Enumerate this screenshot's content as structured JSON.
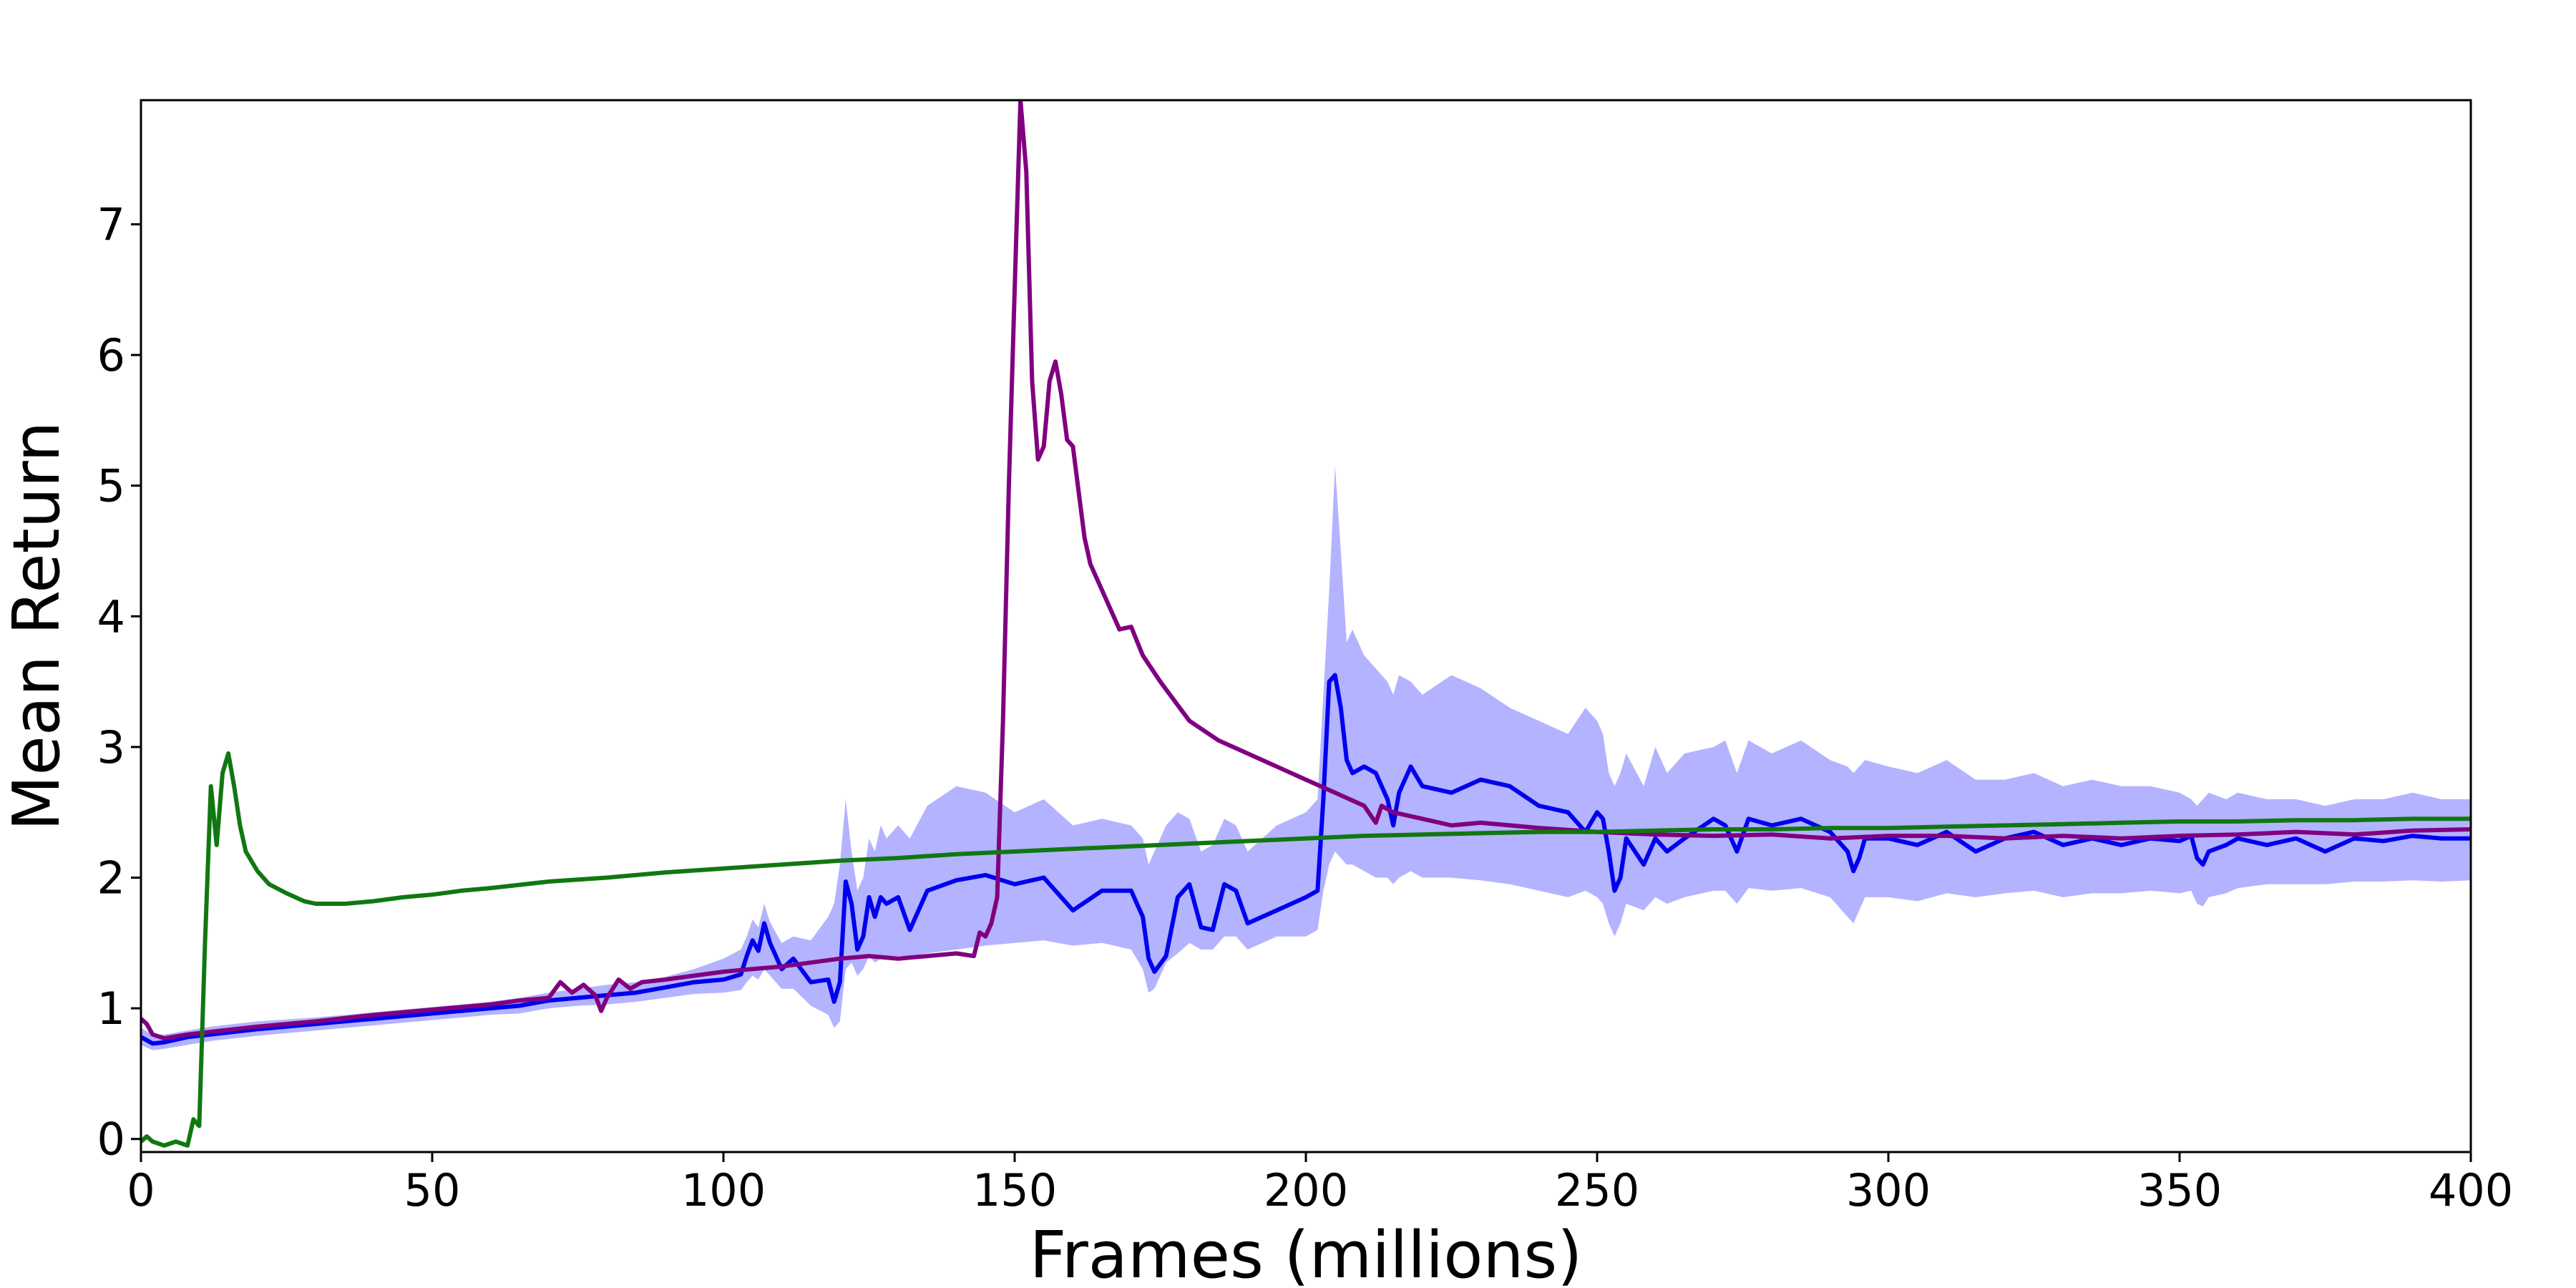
{
  "chart_data": {
    "type": "line",
    "title": "",
    "xlabel": "Frames (millions)",
    "ylabel": "Mean Return",
    "xlim": [
      0,
      400
    ],
    "ylim": [
      -0.1,
      7.95
    ],
    "xticks": [
      0,
      50,
      100,
      150,
      200,
      250,
      300,
      350,
      400
    ],
    "yticks": [
      0,
      1,
      2,
      3,
      4,
      5,
      6,
      7
    ],
    "grid": false,
    "legend": "none",
    "series": [
      {
        "color": "#1f77b4",
        "line_color": "#0000ee",
        "band_color": "#b3b3ff",
        "x": [
          0,
          2,
          4,
          8,
          12,
          20,
          30,
          40,
          50,
          60,
          65,
          70,
          75,
          80,
          85,
          90,
          95,
          100,
          103,
          104,
          105,
          106,
          107,
          108,
          110,
          112,
          115,
          118,
          119,
          120,
          121,
          122,
          123,
          124,
          125,
          126,
          127,
          128,
          130,
          132,
          135,
          140,
          145,
          150,
          155,
          160,
          165,
          170,
          172,
          173,
          174,
          176,
          178,
          180,
          182,
          184,
          186,
          188,
          190,
          195,
          200,
          202,
          203,
          204,
          205,
          206,
          207,
          208,
          210,
          212,
          214,
          215,
          216,
          218,
          220,
          225,
          230,
          235,
          240,
          245,
          248,
          250,
          251,
          252,
          253,
          254,
          255,
          258,
          260,
          262,
          265,
          270,
          272,
          274,
          276,
          280,
          285,
          290,
          293,
          294,
          295,
          296,
          300,
          305,
          310,
          315,
          320,
          325,
          330,
          335,
          340,
          345,
          350,
          352,
          353,
          354,
          355,
          358,
          360,
          365,
          370,
          375,
          380,
          385,
          390,
          395,
          400
        ],
        "y": [
          0.78,
          0.73,
          0.74,
          0.78,
          0.8,
          0.84,
          0.88,
          0.92,
          0.96,
          1.0,
          1.02,
          1.06,
          1.08,
          1.1,
          1.12,
          1.16,
          1.2,
          1.22,
          1.26,
          1.4,
          1.52,
          1.44,
          1.65,
          1.5,
          1.3,
          1.38,
          1.2,
          1.22,
          1.05,
          1.2,
          1.97,
          1.8,
          1.45,
          1.55,
          1.85,
          1.7,
          1.85,
          1.8,
          1.85,
          1.6,
          1.9,
          1.98,
          2.02,
          1.95,
          2.0,
          1.75,
          1.9,
          1.9,
          1.7,
          1.38,
          1.28,
          1.4,
          1.85,
          1.95,
          1.62,
          1.6,
          1.95,
          1.9,
          1.65,
          1.75,
          1.85,
          1.9,
          2.6,
          3.5,
          3.55,
          3.3,
          2.9,
          2.8,
          2.85,
          2.8,
          2.6,
          2.4,
          2.65,
          2.85,
          2.7,
          2.65,
          2.75,
          2.7,
          2.55,
          2.5,
          2.35,
          2.5,
          2.45,
          2.2,
          1.9,
          2.0,
          2.3,
          2.1,
          2.3,
          2.2,
          2.3,
          2.45,
          2.4,
          2.2,
          2.45,
          2.4,
          2.45,
          2.35,
          2.2,
          2.05,
          2.15,
          2.3,
          2.3,
          2.25,
          2.35,
          2.2,
          2.3,
          2.35,
          2.25,
          2.3,
          2.25,
          2.3,
          2.28,
          2.32,
          2.15,
          2.1,
          2.2,
          2.25,
          2.3,
          2.25,
          2.3,
          2.2,
          2.3,
          2.28,
          2.32,
          2.3,
          2.3
        ],
        "upper": [
          0.85,
          0.8,
          0.8,
          0.83,
          0.86,
          0.9,
          0.93,
          0.97,
          1.01,
          1.05,
          1.08,
          1.12,
          1.15,
          1.18,
          1.2,
          1.24,
          1.3,
          1.38,
          1.45,
          1.55,
          1.68,
          1.62,
          1.8,
          1.66,
          1.5,
          1.55,
          1.52,
          1.7,
          1.8,
          2.1,
          2.6,
          2.2,
          1.9,
          2.0,
          2.3,
          2.2,
          2.4,
          2.3,
          2.4,
          2.3,
          2.55,
          2.7,
          2.65,
          2.5,
          2.6,
          2.4,
          2.45,
          2.4,
          2.3,
          2.1,
          2.2,
          2.4,
          2.5,
          2.45,
          2.2,
          2.25,
          2.45,
          2.4,
          2.2,
          2.4,
          2.5,
          2.6,
          3.4,
          4.2,
          5.15,
          4.5,
          3.8,
          3.9,
          3.7,
          3.6,
          3.5,
          3.4,
          3.55,
          3.5,
          3.4,
          3.55,
          3.45,
          3.3,
          3.2,
          3.1,
          3.3,
          3.2,
          3.1,
          2.8,
          2.7,
          2.8,
          2.95,
          2.7,
          3.0,
          2.8,
          2.95,
          3.0,
          3.05,
          2.8,
          3.05,
          2.95,
          3.05,
          2.9,
          2.85,
          2.8,
          2.85,
          2.9,
          2.85,
          2.8,
          2.9,
          2.75,
          2.75,
          2.8,
          2.7,
          2.75,
          2.7,
          2.7,
          2.65,
          2.6,
          2.55,
          2.6,
          2.65,
          2.6,
          2.65,
          2.6,
          2.6,
          2.55,
          2.6,
          2.6,
          2.65,
          2.6,
          2.6
        ],
        "lower": [
          0.72,
          0.68,
          0.69,
          0.72,
          0.75,
          0.79,
          0.83,
          0.87,
          0.91,
          0.95,
          0.96,
          1.0,
          1.02,
          1.03,
          1.05,
          1.08,
          1.11,
          1.12,
          1.14,
          1.2,
          1.25,
          1.22,
          1.3,
          1.25,
          1.15,
          1.15,
          1.02,
          0.95,
          0.85,
          0.9,
          1.3,
          1.35,
          1.25,
          1.3,
          1.4,
          1.35,
          1.38,
          1.38,
          1.4,
          1.4,
          1.42,
          1.45,
          1.48,
          1.5,
          1.52,
          1.48,
          1.5,
          1.45,
          1.3,
          1.12,
          1.15,
          1.35,
          1.42,
          1.5,
          1.45,
          1.45,
          1.55,
          1.55,
          1.45,
          1.55,
          1.55,
          1.6,
          1.9,
          2.1,
          2.2,
          2.15,
          2.1,
          2.1,
          2.05,
          2.0,
          2.0,
          1.95,
          2.0,
          2.05,
          2.0,
          2.0,
          1.98,
          1.95,
          1.9,
          1.85,
          1.9,
          1.85,
          1.8,
          1.65,
          1.55,
          1.65,
          1.8,
          1.75,
          1.85,
          1.8,
          1.85,
          1.9,
          1.9,
          1.8,
          1.92,
          1.9,
          1.92,
          1.85,
          1.7,
          1.65,
          1.75,
          1.85,
          1.85,
          1.82,
          1.88,
          1.85,
          1.88,
          1.9,
          1.85,
          1.88,
          1.88,
          1.9,
          1.88,
          1.9,
          1.8,
          1.78,
          1.85,
          1.88,
          1.92,
          1.95,
          1.95,
          1.95,
          1.97,
          1.97,
          1.98,
          1.97,
          1.98
        ]
      },
      {
        "color": "#800080",
        "x": [
          0,
          1,
          2,
          4,
          8,
          12,
          20,
          30,
          40,
          50,
          60,
          65,
          70,
          72,
          74,
          76,
          78,
          79,
          80,
          82,
          84,
          86,
          90,
          95,
          100,
          105,
          110,
          115,
          120,
          125,
          130,
          135,
          140,
          143,
          144,
          145,
          146,
          147,
          148,
          149,
          150,
          151,
          152,
          153,
          154,
          155,
          156,
          157,
          158,
          159,
          160,
          161,
          162,
          163,
          165,
          168,
          170,
          172,
          175,
          180,
          185,
          190,
          195,
          200,
          205,
          210,
          212,
          213,
          215,
          220,
          225,
          230,
          240,
          250,
          260,
          270,
          280,
          290,
          300,
          310,
          320,
          330,
          340,
          350,
          360,
          370,
          380,
          390,
          400
        ],
        "y": [
          0.92,
          0.88,
          0.8,
          0.77,
          0.8,
          0.82,
          0.86,
          0.9,
          0.95,
          0.99,
          1.03,
          1.06,
          1.08,
          1.2,
          1.12,
          1.18,
          1.1,
          0.98,
          1.08,
          1.22,
          1.15,
          1.2,
          1.22,
          1.25,
          1.28,
          1.3,
          1.32,
          1.35,
          1.38,
          1.4,
          1.38,
          1.4,
          1.42,
          1.4,
          1.58,
          1.55,
          1.65,
          1.85,
          3.2,
          5.0,
          6.5,
          7.95,
          7.4,
          5.8,
          5.2,
          5.3,
          5.8,
          5.95,
          5.7,
          5.35,
          5.3,
          4.95,
          4.6,
          4.4,
          4.2,
          3.9,
          3.92,
          3.7,
          3.5,
          3.2,
          3.05,
          2.95,
          2.85,
          2.75,
          2.65,
          2.55,
          2.42,
          2.55,
          2.5,
          2.45,
          2.4,
          2.42,
          2.38,
          2.35,
          2.33,
          2.32,
          2.33,
          2.3,
          2.32,
          2.32,
          2.3,
          2.32,
          2.3,
          2.32,
          2.33,
          2.35,
          2.33,
          2.36,
          2.37
        ]
      },
      {
        "color": "#117711",
        "x": [
          0,
          1,
          2,
          4,
          6,
          8,
          9,
          10,
          11,
          12,
          13,
          14,
          15,
          16,
          17,
          18,
          20,
          22,
          25,
          28,
          30,
          35,
          40,
          45,
          50,
          55,
          60,
          70,
          80,
          90,
          100,
          110,
          120,
          130,
          140,
          150,
          160,
          170,
          180,
          190,
          200,
          210,
          220,
          230,
          240,
          250,
          260,
          270,
          280,
          290,
          300,
          310,
          320,
          330,
          340,
          350,
          360,
          370,
          380,
          390,
          400
        ],
        "y": [
          -0.02,
          0.02,
          -0.02,
          -0.05,
          -0.02,
          -0.05,
          0.15,
          0.1,
          1.5,
          2.7,
          2.25,
          2.8,
          2.95,
          2.7,
          2.4,
          2.2,
          2.05,
          1.95,
          1.88,
          1.82,
          1.8,
          1.8,
          1.82,
          1.85,
          1.87,
          1.9,
          1.92,
          1.97,
          2.0,
          2.04,
          2.07,
          2.1,
          2.13,
          2.15,
          2.18,
          2.2,
          2.22,
          2.24,
          2.26,
          2.28,
          2.3,
          2.32,
          2.33,
          2.34,
          2.35,
          2.35,
          2.36,
          2.37,
          2.37,
          2.38,
          2.38,
          2.39,
          2.4,
          2.41,
          2.42,
          2.43,
          2.43,
          2.44,
          2.44,
          2.45,
          2.45
        ]
      }
    ]
  }
}
